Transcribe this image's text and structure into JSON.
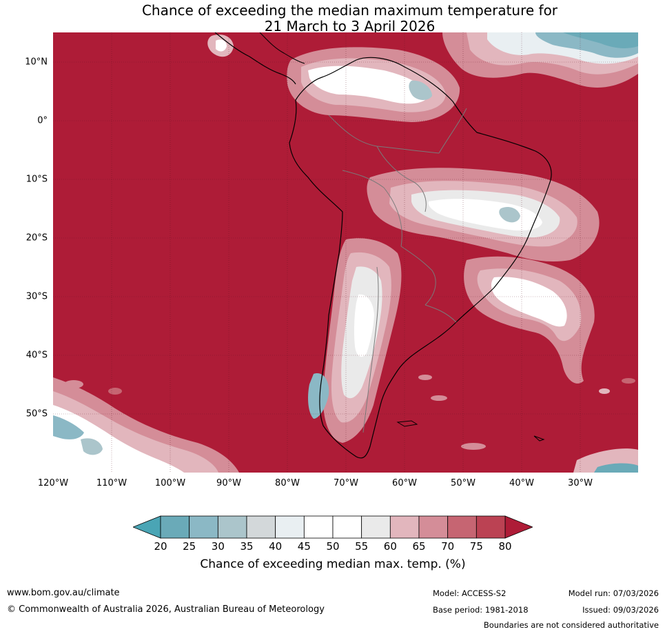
{
  "title": {
    "line1": "Chance of exceeding the median maximum temperature for",
    "line2": "21 March to 3 April 2026"
  },
  "map": {
    "region": "South America",
    "background_category": "80+",
    "background_color": "#ae1c37",
    "lat_labels": [
      "10°N",
      "0°",
      "10°S",
      "20°S",
      "30°S",
      "40°S",
      "50°S"
    ],
    "lon_labels": [
      "120°W",
      "110°W",
      "100°W",
      "90°W",
      "80°W",
      "70°W",
      "60°W",
      "50°W",
      "40°W",
      "30°W"
    ]
  },
  "colorbar": {
    "ticks": [
      "20",
      "25",
      "30",
      "35",
      "40",
      "45",
      "50",
      "55",
      "60",
      "65",
      "70",
      "75",
      "80"
    ],
    "colors": [
      "#6aaab8",
      "#8bb8c5",
      "#abc5cb",
      "#d3d8da",
      "#e9eff2",
      "#ffffff",
      "#ffffff",
      "#eaeaea",
      "#e2b6bd",
      "#d48d98",
      "#c66572",
      "#bb4253"
    ],
    "under_color": "#4aa5b5",
    "over_color": "#ae1c37",
    "label": "Chance of exceeding median max. temp. (%)"
  },
  "footer": {
    "website": "www.bom.gov.au/climate",
    "copyright": "© Commonwealth of Australia 2026, Australian Bureau of Meteorology",
    "model": "Model: ACCESS-S2",
    "base_period": "Base period: 1981-2018",
    "model_run": "Model run: 07/03/2026",
    "issued": "Issued: 09/03/2026",
    "disclaimer": "Boundaries are not considered authoritative"
  }
}
